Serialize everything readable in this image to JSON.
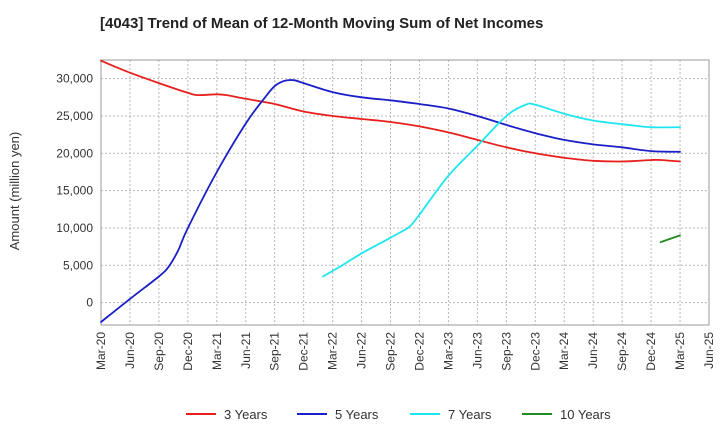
{
  "chart_data": {
    "type": "line",
    "title": "[4043]  Trend of Mean of 12-Month Moving Sum of Net Incomes",
    "ylabel": "Amount (million yen)",
    "xlabel": "",
    "ylim": [
      -3000,
      32500
    ],
    "xlim": [
      "Mar-20",
      "Jun-25"
    ],
    "y_ticks": [
      0,
      5000,
      10000,
      15000,
      20000,
      25000,
      30000
    ],
    "y_tick_labels": [
      "0",
      "5,000",
      "10,000",
      "15,000",
      "20,000",
      "25,000",
      "30,000"
    ],
    "x_ticks": [
      "Mar-20",
      "Jun-20",
      "Sep-20",
      "Dec-20",
      "Mar-21",
      "Jun-21",
      "Sep-21",
      "Dec-21",
      "Mar-22",
      "Jun-22",
      "Sep-22",
      "Dec-22",
      "Mar-23",
      "Jun-23",
      "Sep-23",
      "Dec-23",
      "Mar-24",
      "Jun-24",
      "Sep-24",
      "Dec-24",
      "Mar-25",
      "Jun-25"
    ],
    "grid": true,
    "legend_position": "bottom",
    "series": [
      {
        "name": "3 Years",
        "color": "#e8201d",
        "points": [
          [
            "Mar-20",
            32400
          ],
          [
            "Jun-20",
            30800
          ],
          [
            "Sep-20",
            29400
          ],
          [
            "Dec-20",
            28100
          ],
          [
            "Jan-21",
            27800
          ],
          [
            "Mar-21",
            27900
          ],
          [
            "Apr-21",
            27800
          ],
          [
            "Jun-21",
            27300
          ],
          [
            "Sep-21",
            26600
          ],
          [
            "Dec-21",
            25600
          ],
          [
            "Mar-22",
            25000
          ],
          [
            "Jun-22",
            24600
          ],
          [
            "Sep-22",
            24200
          ],
          [
            "Dec-22",
            23600
          ],
          [
            "Mar-23",
            22800
          ],
          [
            "Jun-23",
            21800
          ],
          [
            "Sep-23",
            20800
          ],
          [
            "Dec-23",
            20000
          ],
          [
            "Mar-24",
            19400
          ],
          [
            "Jun-24",
            19000
          ],
          [
            "Sep-24",
            18900
          ],
          [
            "Dec-24",
            19100
          ],
          [
            "Jan-25",
            19100
          ],
          [
            "Mar-25",
            18900
          ]
        ]
      },
      {
        "name": "5 Years",
        "color": "#1a1fc7",
        "points": [
          [
            "Mar-20",
            -2600
          ],
          [
            "Jun-20",
            500
          ],
          [
            "Sep-20",
            3500
          ],
          [
            "Oct-20",
            4800
          ],
          [
            "Nov-20",
            7000
          ],
          [
            "Dec-20",
            10000
          ],
          [
            "Mar-21",
            17500
          ],
          [
            "Jun-21",
            24000
          ],
          [
            "Aug-21",
            27500
          ],
          [
            "Sep-21",
            29000
          ],
          [
            "Oct-21",
            29700
          ],
          [
            "Nov-21",
            29800
          ],
          [
            "Dec-21",
            29400
          ],
          [
            "Mar-22",
            28200
          ],
          [
            "Jun-22",
            27500
          ],
          [
            "Sep-22",
            27100
          ],
          [
            "Dec-22",
            26600
          ],
          [
            "Mar-23",
            26000
          ],
          [
            "Jun-23",
            25000
          ],
          [
            "Sep-23",
            23800
          ],
          [
            "Dec-23",
            22700
          ],
          [
            "Mar-24",
            21800
          ],
          [
            "Jun-24",
            21200
          ],
          [
            "Sep-24",
            20800
          ],
          [
            "Dec-24",
            20300
          ],
          [
            "Mar-25",
            20200
          ]
        ]
      },
      {
        "name": "7 Years",
        "color": "#1ee6f0",
        "points": [
          [
            "Feb-22",
            3500
          ],
          [
            "Apr-22",
            5000
          ],
          [
            "Jun-22",
            6600
          ],
          [
            "Aug-22",
            8000
          ],
          [
            "Oct-22",
            9400
          ],
          [
            "Nov-22",
            10200
          ],
          [
            "Dec-22",
            11800
          ],
          [
            "Mar-23",
            17000
          ],
          [
            "Jun-23",
            21000
          ],
          [
            "Sep-23",
            25000
          ],
          [
            "Nov-23",
            26500
          ],
          [
            "Dec-23",
            26500
          ],
          [
            "Mar-24",
            25300
          ],
          [
            "Jun-24",
            24400
          ],
          [
            "Sep-24",
            23900
          ],
          [
            "Dec-24",
            23500
          ],
          [
            "Mar-25",
            23500
          ]
        ]
      },
      {
        "name": "10 Years",
        "color": "#228b22",
        "points": [
          [
            "Jan-25",
            8100
          ],
          [
            "Mar-25",
            9000
          ]
        ]
      }
    ]
  }
}
